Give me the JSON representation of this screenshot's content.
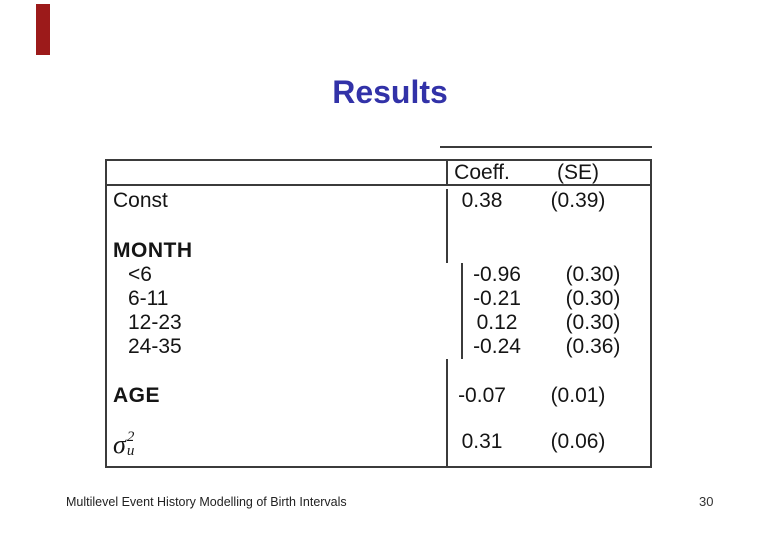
{
  "slide": {
    "title": "Results",
    "accent_color": "#9C1A1A",
    "title_color": "#3232A8"
  },
  "table": {
    "header": {
      "coeff": "Coeff.",
      "se": "(SE)"
    },
    "rows": [
      {
        "label": "Const",
        "coeff": "0.38",
        "se": "(0.39)"
      },
      {
        "label": "MONTH",
        "coeff": "",
        "se": ""
      },
      {
        "label": "<6",
        "coeff": "-0.96",
        "se": "(0.30)"
      },
      {
        "label": "6-11",
        "coeff": "-0.21",
        "se": "(0.30)"
      },
      {
        "label": "12-23",
        "coeff": "0.12",
        "se": "(0.30)"
      },
      {
        "label": "24-35",
        "coeff": "-0.24",
        "se": "(0.36)"
      },
      {
        "label": "AGE",
        "coeff": "-0.07",
        "se": "(0.01)"
      },
      {
        "sigma": {
          "base": "σ",
          "sup": "2",
          "sub": "u"
        },
        "coeff": "0.31",
        "se": "(0.06)"
      }
    ]
  },
  "footer": {
    "left": "Multilevel Event History Modelling of Birth Intervals",
    "page": "30"
  }
}
